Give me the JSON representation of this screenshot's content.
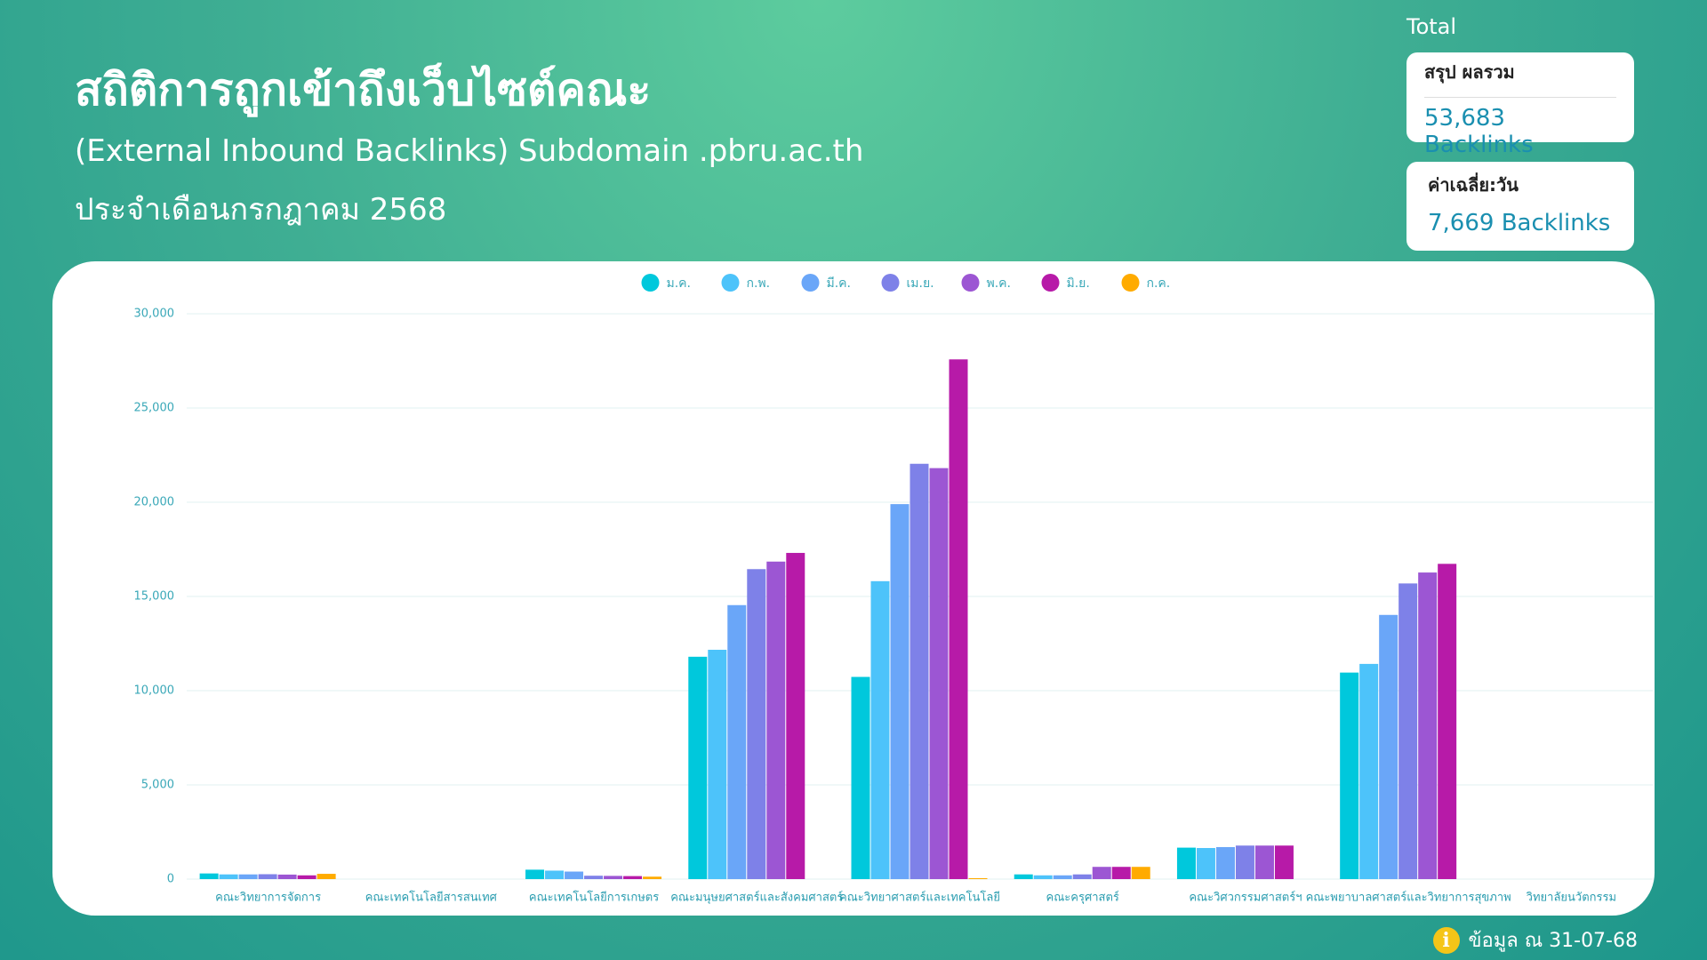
{
  "header": {
    "title": "สถิติการถูกเข้าถึงเว็บไซต์คณะ",
    "subtitle": "(External Inbound Backlinks) Subdomain .pbru.ac.th",
    "period": "ประจำเดือนกรกฎาคม 2568"
  },
  "summary": {
    "label": "Total",
    "total_title": "สรุป ผลรวม",
    "total_value": "53,683 Backlinks",
    "avg_title": "ค่าเฉลี่ย:วัน",
    "avg_value": "7,669 Backlinks"
  },
  "footer": {
    "note": "ข้อมูล ณ 31-07-68"
  },
  "chart_data": {
    "type": "bar",
    "categories": [
      "คณะวิทยาการจัดการ",
      "คณะเทคโนโลยีสารสนเทศ",
      "คณะเทคโนโลยีการเกษตร",
      "คณะมนุษยศาสตร์และสังคมศาสตร์",
      "คณะวิทยาศาสตร์และเทคโนโลยี",
      "คณะครุศาสตร์",
      "คณะวิศวกรรมศาสตร์ฯ",
      "คณะพยาบาลศาสตร์และวิทยาการสุขภาพ",
      "วิทยาลัยนวัตกรรม"
    ],
    "series": [
      {
        "name": "ม.ค.",
        "color": "#00c8dc",
        "values": [
          300,
          0,
          500,
          11800,
          10730,
          250,
          1670,
          10960,
          0
        ]
      },
      {
        "name": "ก.พ.",
        "color": "#4dc3fa",
        "values": [
          250,
          0,
          450,
          12170,
          15810,
          200,
          1650,
          11420,
          0
        ]
      },
      {
        "name": "มี.ค.",
        "color": "#6aa6f8",
        "values": [
          250,
          0,
          400,
          14540,
          19900,
          200,
          1700,
          14020,
          0
        ]
      },
      {
        "name": "เม.ย.",
        "color": "#7e81e8",
        "values": [
          260,
          0,
          180,
          16450,
          22040,
          250,
          1780,
          15690,
          0
        ]
      },
      {
        "name": "พ.ค.",
        "color": "#9c56d3",
        "values": [
          240,
          0,
          170,
          16850,
          21810,
          650,
          1780,
          16270,
          0
        ]
      },
      {
        "name": "มิ.ย.",
        "color": "#b71aa8",
        "values": [
          200,
          0,
          160,
          17310,
          27580,
          650,
          1780,
          16730,
          0
        ]
      },
      {
        "name": "ก.ค.",
        "color": "#ffab00",
        "values": [
          280,
          0,
          130,
          0,
          50,
          650,
          0,
          0,
          0
        ]
      }
    ],
    "ylim": [
      0,
      30000
    ],
    "yticks": [
      0,
      {
        "value": 5000,
        "label": "5,000"
      },
      {
        "value": 10000,
        "label": "10,000"
      },
      {
        "value": 15000,
        "label": "15,000"
      },
      {
        "value": 20000,
        "label": "20,000"
      },
      {
        "value": 25000,
        "label": "25,000"
      },
      {
        "value": 30000,
        "label": "30,000"
      }
    ],
    "grid": true,
    "legend": "top"
  }
}
